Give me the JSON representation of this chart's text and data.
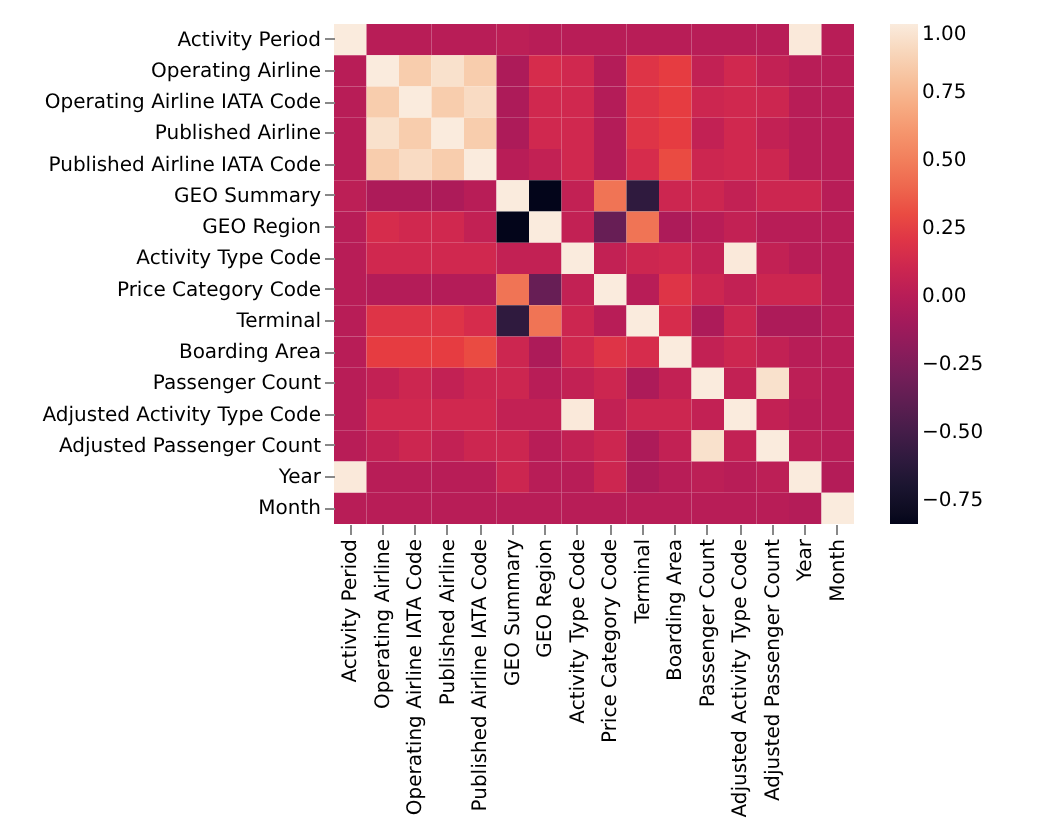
{
  "chart_data": {
    "type": "heatmap",
    "categories": [
      "Activity Period",
      "Operating Airline",
      "Operating Airline IATA Code",
      "Published Airline",
      "Published Airline IATA Code",
      "GEO Summary",
      "GEO Region",
      "Activity Type Code",
      "Price Category Code",
      "Terminal",
      "Boarding Area",
      "Passenger Count",
      "Adjusted Activity Type Code",
      "Adjusted Passenger Count",
      "Year",
      "Month"
    ],
    "y_categories": [
      "Activity Period",
      "Operating Airline",
      "Operating Airline IATA Code",
      "Published Airline",
      "Published Airline IATA Code",
      "GEO Summary",
      "GEO Region",
      "Activity Type Code",
      "Price Category Code",
      "Terminal",
      "Boarding Area",
      "Passenger Count",
      "Adjusted Activity Type Code",
      "Adjusted Passenger Count",
      "Year",
      "Month"
    ],
    "cells": [
      [
        1,
        0,
        0,
        0,
        0,
        0.02,
        0,
        0,
        0,
        0,
        0,
        0,
        0,
        0,
        0.99,
        0
      ],
      [
        0,
        1,
        0.85,
        0.95,
        0.85,
        -0.05,
        0.15,
        0.12,
        -0.02,
        0.2,
        0.25,
        0.05,
        0.12,
        0.05,
        0,
        0
      ],
      [
        0,
        0.85,
        1,
        0.85,
        0.92,
        -0.05,
        0.12,
        0.12,
        -0.02,
        0.2,
        0.25,
        0.1,
        0.12,
        0.1,
        0,
        0
      ],
      [
        0,
        0.95,
        0.85,
        1,
        0.85,
        -0.05,
        0.12,
        0.12,
        -0.02,
        0.2,
        0.25,
        0.05,
        0.12,
        0.05,
        0,
        0
      ],
      [
        0,
        0.85,
        0.92,
        0.85,
        1,
        0,
        0.05,
        0.12,
        -0.02,
        0.15,
        0.3,
        0.1,
        0.12,
        0.1,
        0,
        0
      ],
      [
        0.02,
        -0.05,
        -0.05,
        -0.05,
        0,
        1,
        -0.84,
        0.05,
        0.45,
        -0.6,
        0.1,
        0.1,
        0.05,
        0.1,
        0.1,
        0
      ],
      [
        0,
        0.15,
        0.12,
        0.12,
        0.05,
        -0.84,
        1,
        0.05,
        -0.35,
        0.45,
        -0.05,
        0,
        0.05,
        0,
        0,
        0
      ],
      [
        0,
        0.12,
        0.12,
        0.12,
        0.12,
        0.05,
        0.05,
        1,
        0.05,
        0.1,
        0.12,
        0.05,
        0.99,
        0.05,
        0,
        0
      ],
      [
        0,
        -0.02,
        -0.02,
        -0.02,
        -0.02,
        0.45,
        -0.35,
        0.05,
        1,
        0,
        0.2,
        0.1,
        0.05,
        0.1,
        0.1,
        0
      ],
      [
        0,
        0.2,
        0.2,
        0.2,
        0.15,
        -0.6,
        0.45,
        0.1,
        0,
        1,
        0.15,
        -0.05,
        0.1,
        -0.05,
        -0.05,
        0
      ],
      [
        0,
        0.25,
        0.25,
        0.25,
        0.3,
        0.1,
        -0.05,
        0.12,
        0.2,
        0.15,
        1,
        0.05,
        0.1,
        0.05,
        0,
        0
      ],
      [
        0,
        0.05,
        0.1,
        0.05,
        0.1,
        0.1,
        0,
        0.05,
        0.1,
        -0.05,
        0.05,
        1,
        0.05,
        0.95,
        0.02,
        0
      ],
      [
        0,
        0.12,
        0.12,
        0.12,
        0.12,
        0.05,
        0.05,
        0.99,
        0.05,
        0.1,
        0.1,
        0.05,
        1,
        0.05,
        0,
        0
      ],
      [
        0,
        0.05,
        0.1,
        0.05,
        0.1,
        0.1,
        0,
        0.05,
        0.1,
        -0.05,
        0.05,
        0.95,
        0.05,
        1,
        0.02,
        0
      ],
      [
        0.99,
        0,
        0,
        0,
        0,
        0.1,
        0,
        0,
        0.1,
        -0.05,
        0,
        0.02,
        0,
        0.02,
        1,
        -0.02
      ],
      [
        0,
        0,
        0,
        0,
        0,
        0,
        0,
        0,
        0,
        0,
        0,
        0,
        0,
        0,
        -0.02,
        1
      ]
    ],
    "colors": [
      "#03051a",
      "#4c1d4b",
      "#a11a5b",
      "#e83f3f",
      "#f69c73",
      "#faebdd"
    ],
    "clim": [
      -0.84,
      1.0
    ],
    "cticks": [
      {
        "value": 1.0,
        "label": "1.00"
      },
      {
        "value": 0.75,
        "label": "0.75"
      },
      {
        "value": 0.5,
        "label": "0.50"
      },
      {
        "value": 0.25,
        "label": "0.25"
      },
      {
        "value": 0,
        "label": "0.00"
      },
      {
        "value": -0.25,
        "label": "−0.25"
      },
      {
        "value": -0.5,
        "label": "−0.50"
      },
      {
        "value": -0.75,
        "label": "−0.75"
      }
    ]
  }
}
